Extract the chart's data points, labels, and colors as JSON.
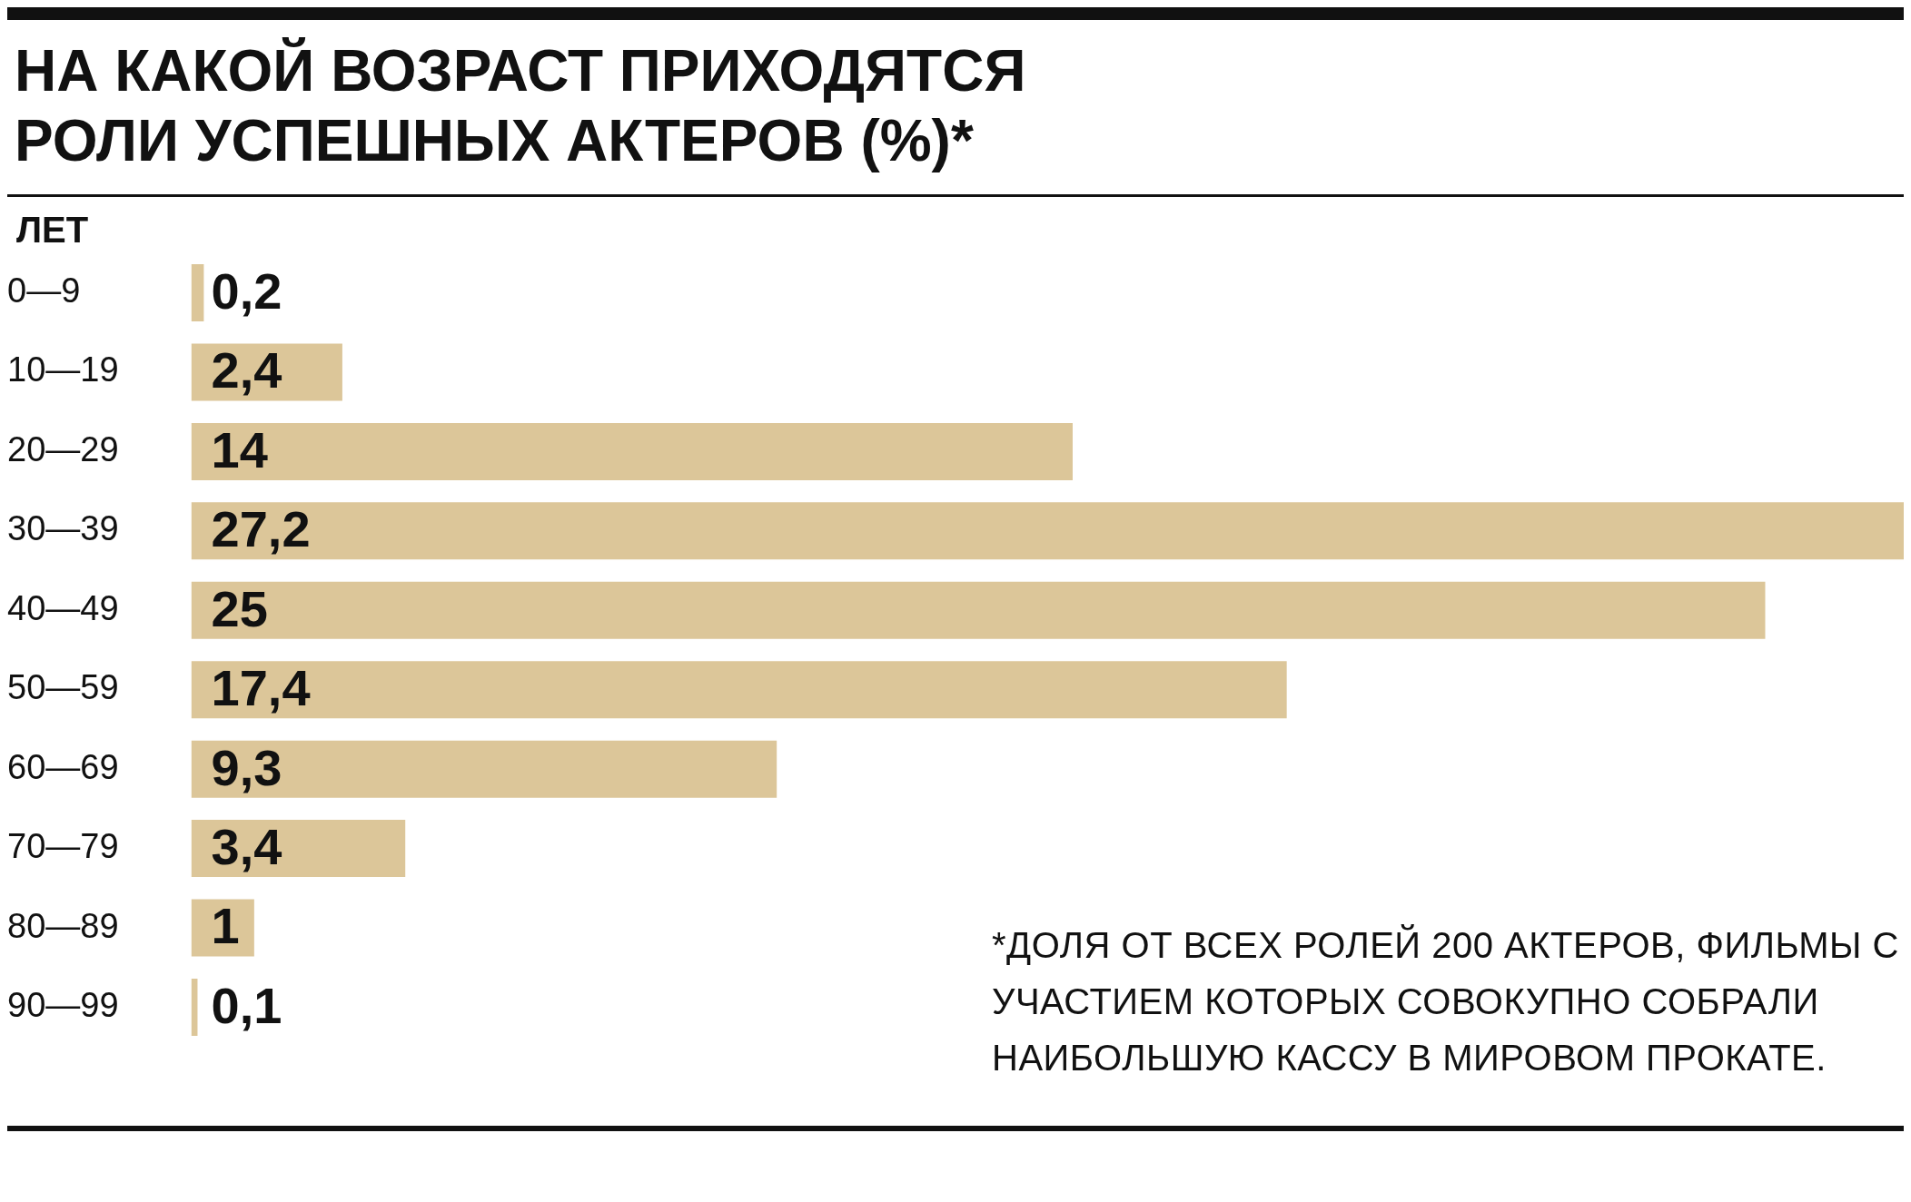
{
  "chart_data": {
    "type": "bar",
    "orientation": "horizontal",
    "title": "НА КАКОЙ ВОЗРАСТ ПРИХОДЯТСЯ РОЛИ УСПЕШНЫХ АКТЕРОВ (%)*",
    "ylabel": "ЛЕТ",
    "categories": [
      "0—9",
      "10—19",
      "20—29",
      "30—39",
      "40—49",
      "50—59",
      "60—69",
      "70—79",
      "80—89",
      "90—99"
    ],
    "values": [
      0.2,
      2.4,
      14,
      27.2,
      25,
      17.4,
      9.3,
      3.4,
      1,
      0.1
    ],
    "value_labels": [
      "0,2",
      "2,4",
      "14",
      "27,2",
      "25",
      "17,4",
      "9,3",
      "3,4",
      "1",
      "0,1"
    ],
    "color": "#dcc699",
    "xlim": [
      0,
      27.2
    ],
    "tick_labels": "y",
    "grid": false,
    "legend": false,
    "annotations": [
      "*ДОЛЯ ОТ ВСЕХ РОЛЕЙ 200 АКТЕРОВ, ФИЛЬМЫ С УЧАСТИЕМ КОТОРЫХ СОВОКУПНО СОБРАЛИ НАИБОЛЬШУЮ КАССУ В МИРОВОМ ПРОКАТЕ."
    ]
  }
}
